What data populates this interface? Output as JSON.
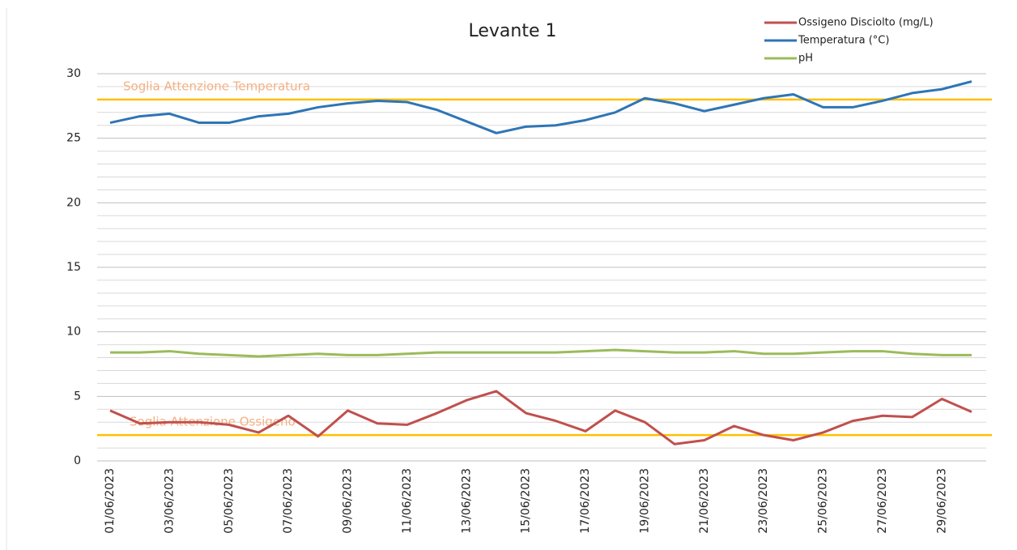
{
  "chart_data": {
    "type": "line",
    "title": "Levante 1",
    "categories": [
      "01/06/2023",
      null,
      "03/06/2023",
      null,
      "05/06/2023",
      null,
      "07/06/2023",
      null,
      "09/06/2023",
      null,
      "11/06/2023",
      null,
      "13/06/2023",
      null,
      "15/06/2023",
      null,
      "17/06/2023",
      null,
      "19/06/2023",
      null,
      "21/06/2023",
      null,
      "23/06/2023",
      null,
      "25/06/2023",
      null,
      "27/06/2023",
      null,
      "29/06/2023",
      null
    ],
    "series": [
      {
        "name": "Ossigeno Disciolto (mg/L)",
        "color": "#c0504d",
        "values": [
          3.9,
          2.9,
          3.0,
          3.0,
          2.8,
          2.2,
          3.5,
          1.9,
          3.9,
          2.9,
          2.8,
          3.7,
          4.7,
          5.4,
          3.7,
          3.1,
          2.3,
          3.9,
          3.0,
          1.3,
          1.6,
          2.7,
          2.0,
          1.6,
          2.2,
          3.1,
          3.5,
          3.4,
          4.8,
          3.8
        ]
      },
      {
        "name": "Temperatura (°C)",
        "color": "#2e75b6",
        "values": [
          26.2,
          26.7,
          26.9,
          26.2,
          26.2,
          26.7,
          26.9,
          27.4,
          27.7,
          27.9,
          27.8,
          27.2,
          26.3,
          25.4,
          25.9,
          26.0,
          26.4,
          27.0,
          28.1,
          27.7,
          27.1,
          27.6,
          28.1,
          28.4,
          27.4,
          27.4,
          27.9,
          28.5,
          28.8,
          29.4
        ]
      },
      {
        "name": "pH",
        "color": "#9bbb59",
        "values": [
          8.4,
          8.4,
          8.5,
          8.3,
          8.2,
          8.1,
          8.2,
          8.3,
          8.2,
          8.2,
          8.3,
          8.4,
          8.4,
          8.4,
          8.4,
          8.4,
          8.5,
          8.6,
          8.5,
          8.4,
          8.4,
          8.5,
          8.3,
          8.3,
          8.4,
          8.5,
          8.5,
          8.3,
          8.2,
          8.2
        ]
      }
    ],
    "thresholds": [
      {
        "label": "Soglia Attenzione Temperatura",
        "value": 28,
        "color": "#ffc000",
        "label_color": "#f4b183"
      },
      {
        "label": "Soglia Attenzione Ossigeno",
        "value": 2,
        "color": "#ffc000",
        "label_color": "#f4b183"
      }
    ],
    "ylim": [
      0,
      30
    ],
    "yticks": [
      0,
      5,
      10,
      15,
      20,
      25,
      30
    ],
    "minor_yticks": [
      1,
      2,
      3,
      4,
      6,
      7,
      8,
      9,
      11,
      12,
      13,
      14,
      16,
      17,
      18,
      19,
      21,
      22,
      23,
      24,
      26,
      27,
      28,
      29
    ],
    "grid": true,
    "legend": "top-right"
  }
}
